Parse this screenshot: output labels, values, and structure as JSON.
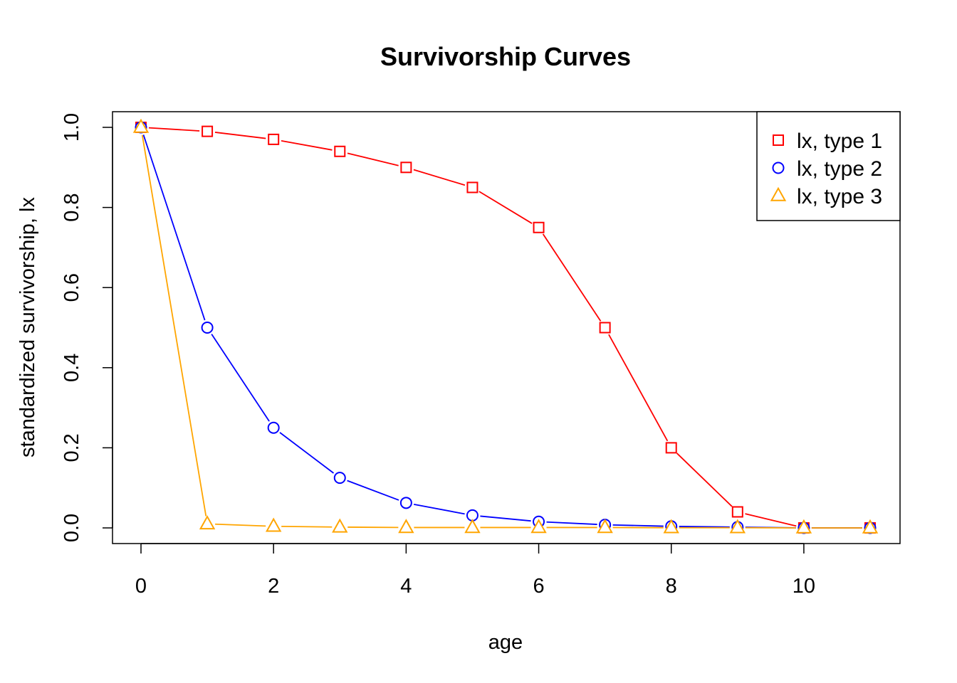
{
  "chart_data": {
    "type": "line",
    "title": "Survivorship Curves",
    "xlabel": "age",
    "ylabel": "standardized survivorship, lx",
    "xlim": [
      0,
      11
    ],
    "ylim": [
      0,
      1
    ],
    "xticks": [
      0,
      2,
      4,
      6,
      8,
      10
    ],
    "yticks": [
      0.0,
      0.2,
      0.4,
      0.6,
      0.8,
      1.0
    ],
    "xtick_labels": [
      "0",
      "2",
      "4",
      "6",
      "8",
      "10"
    ],
    "ytick_labels": [
      "0.0",
      "0.2",
      "0.4",
      "0.6",
      "0.8",
      "1.0"
    ],
    "grid": false,
    "legend_position": "top-right",
    "x": [
      0,
      1,
      2,
      3,
      4,
      5,
      6,
      7,
      8,
      9,
      10,
      11
    ],
    "series": [
      {
        "name": "lx, type 1",
        "color": "#FF0000",
        "marker": "square",
        "values": [
          1.0,
          0.99,
          0.97,
          0.94,
          0.9,
          0.85,
          0.75,
          0.5,
          0.2,
          0.04,
          0.0,
          0.0
        ]
      },
      {
        "name": "lx, type 2",
        "color": "#0000FF",
        "marker": "circle",
        "values": [
          1.0,
          0.5,
          0.25,
          0.125,
          0.0625,
          0.03125,
          0.015625,
          0.0078125,
          0.00390625,
          0.001953125,
          0.0,
          0.0
        ]
      },
      {
        "name": "lx, type 3",
        "color": "#FFA500",
        "marker": "triangle",
        "values": [
          1.0,
          0.01,
          0.004,
          0.002,
          0.001,
          0.001,
          0.001,
          0.001,
          0.0005,
          0.0005,
          0.0,
          0.0
        ]
      }
    ]
  }
}
